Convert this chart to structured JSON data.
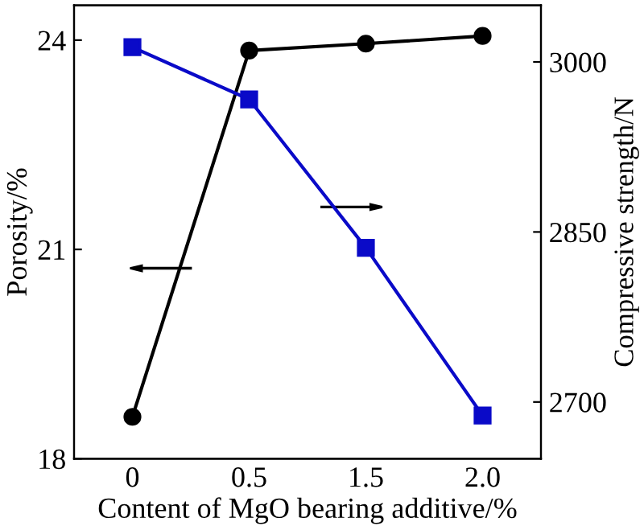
{
  "chart_data": {
    "type": "line",
    "xlabel": "Content of MgO bearing additive/%",
    "ylabel": "Porosity/%",
    "y2label": "Compressive strength/N",
    "categories": [
      "0",
      "0.5",
      "1.5",
      "2.0"
    ],
    "series": [
      {
        "color": "#000000",
        "marker": "circle",
        "values": [
          18.6,
          23.85,
          23.95,
          24.06
        ]
      },
      {
        "color": "#0a0ac8",
        "marker": "square",
        "axis": "y2",
        "values": [
          3013,
          2967,
          2836,
          2688
        ]
      }
    ],
    "ylim": [
      18,
      24.5
    ],
    "yticks": [
      18,
      21,
      24
    ],
    "y2lim": [
      2650,
      3050
    ],
    "y2ticks": [
      2700,
      2850,
      3000
    ],
    "grid": false,
    "legend": false
  }
}
